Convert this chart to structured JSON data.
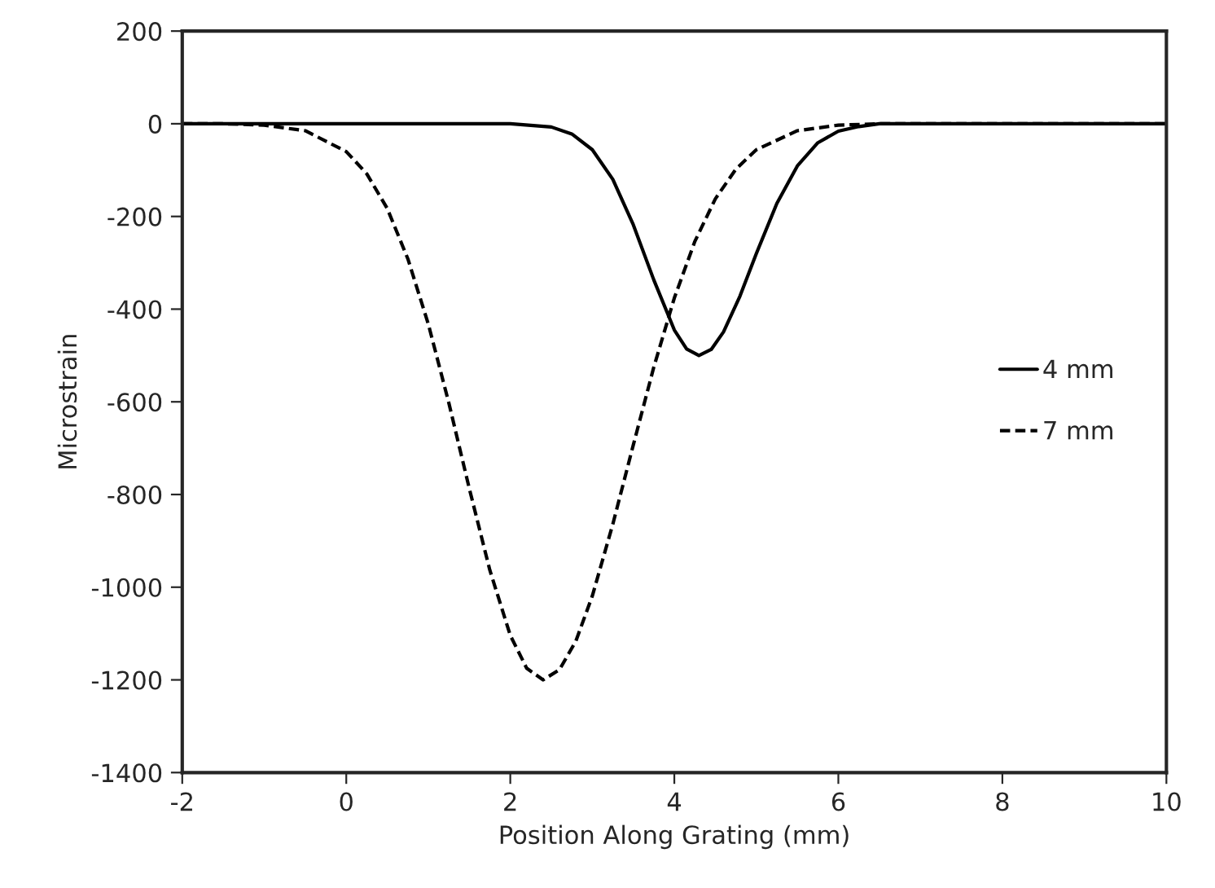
{
  "chart_data": {
    "type": "line",
    "xlabel": "Position Along Grating (mm)",
    "ylabel": "Microstrain",
    "xlim": [
      -2,
      10
    ],
    "xticks": [
      -2,
      0,
      2,
      4,
      6,
      8,
      10
    ],
    "ylim": [
      -1400,
      200
    ],
    "yticks": [
      -1400,
      -1200,
      -1000,
      -800,
      -600,
      -400,
      -200,
      0,
      200
    ],
    "grid": false,
    "legend": "right",
    "marker": "none",
    "series": [
      {
        "name": "4 mm",
        "color": "#000000",
        "line_style": "solid",
        "x": [
          -2,
          0,
          2,
          2.5,
          2.75,
          3,
          3.25,
          3.5,
          3.75,
          4,
          4.15,
          4.3,
          4.45,
          4.6,
          4.8,
          5,
          5.25,
          5.5,
          5.75,
          6,
          6.25,
          6.5,
          8,
          10
        ],
        "values": [
          0,
          0,
          0,
          -7,
          -22,
          -56,
          -120,
          -218,
          -337,
          -445,
          -486,
          -500,
          -487,
          -449,
          -372,
          -280,
          -172,
          -91,
          -41,
          -16,
          -6,
          0,
          0,
          0
        ]
      },
      {
        "name": "7 mm",
        "color": "#000000",
        "line_style": "dashed",
        "x": [
          -2,
          -1.5,
          -1,
          -0.5,
          0,
          0.25,
          0.5,
          0.75,
          1,
          1.25,
          1.5,
          1.75,
          2,
          2.2,
          2.4,
          2.6,
          2.8,
          3,
          3.25,
          3.5,
          3.75,
          4,
          4.25,
          4.5,
          4.75,
          5,
          5.5,
          6,
          6.5,
          8,
          10
        ],
        "values": [
          0,
          0,
          -3,
          -15,
          -60,
          -108,
          -183,
          -291,
          -432,
          -602,
          -787,
          -963,
          -1104,
          -1175,
          -1200,
          -1178,
          -1116,
          -1019,
          -864,
          -693,
          -525,
          -376,
          -254,
          -162,
          -98,
          -56,
          -15,
          -3,
          0,
          0,
          0
        ]
      }
    ]
  }
}
